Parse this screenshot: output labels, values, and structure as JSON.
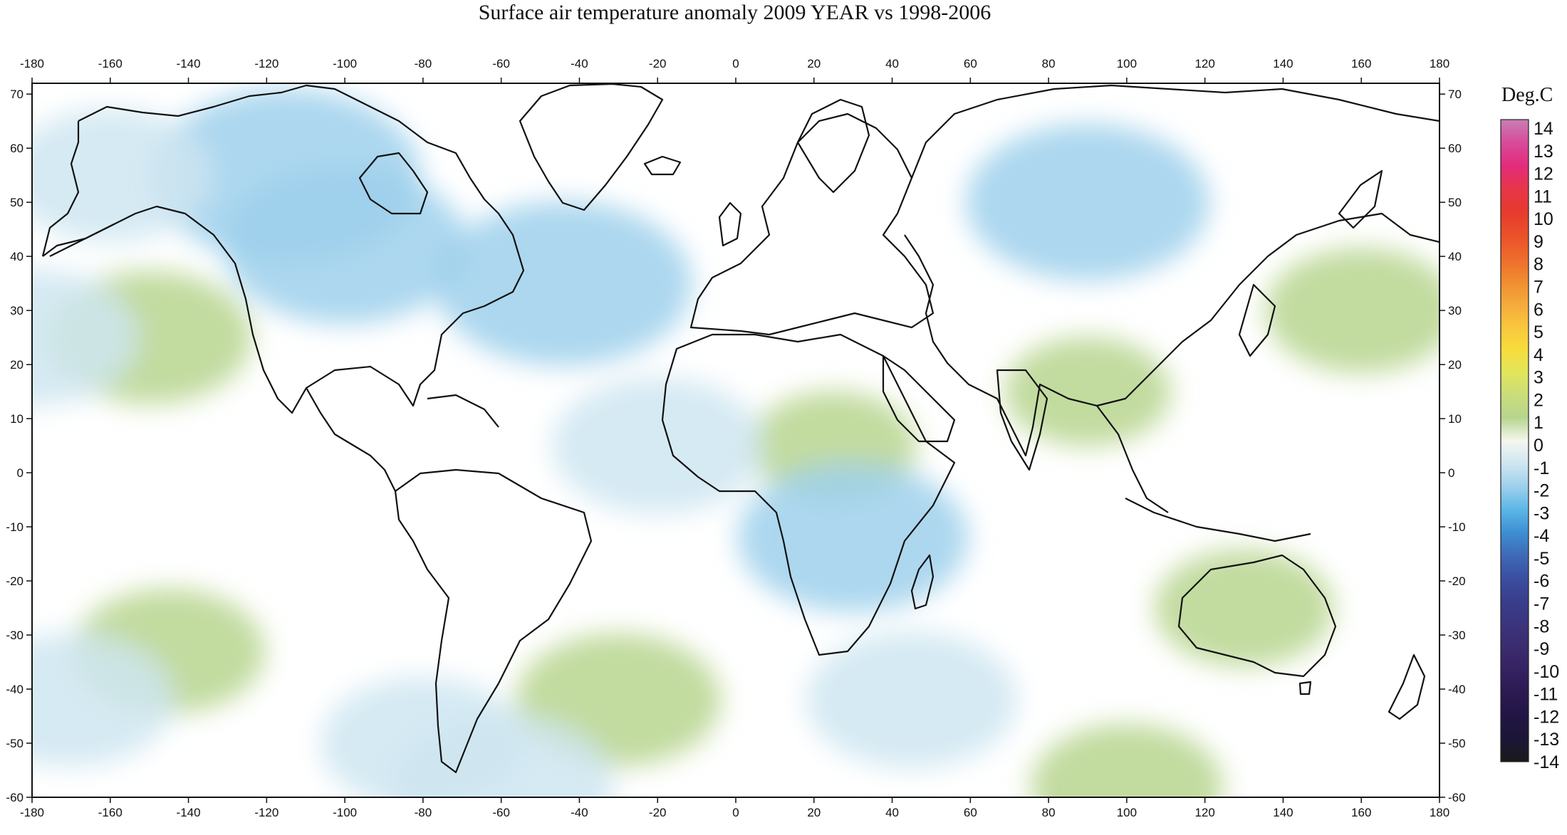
{
  "title": "Surface air temperature anomaly 2009 YEAR vs 1998-2006",
  "chart_data": {
    "type": "heatmap",
    "title": "Surface air temperature anomaly 2009 YEAR vs 1998-2006",
    "x_range": [
      -180,
      180
    ],
    "y_range": [
      -60,
      72
    ],
    "x_ticks": [
      -180,
      -160,
      -140,
      -120,
      -100,
      -80,
      -60,
      -40,
      -20,
      0,
      20,
      40,
      60,
      80,
      100,
      120,
      140,
      160,
      180
    ],
    "y_ticks": [
      70,
      60,
      50,
      40,
      30,
      20,
      10,
      0,
      -10,
      -20,
      -30,
      -40,
      -50,
      -60
    ],
    "colorbar": {
      "unit": "Deg.C",
      "levels": [
        14,
        13,
        12,
        11,
        10,
        9,
        8,
        7,
        6,
        5,
        4,
        3,
        2,
        1,
        0,
        -1,
        -2,
        -3,
        -4,
        -5,
        -6,
        -7,
        -8,
        -9,
        -10,
        -11,
        -12,
        -13,
        -14
      ],
      "colors": [
        "#c77fb4",
        "#d74b9a",
        "#e32c7c",
        "#e8354a",
        "#e63a2e",
        "#ea4f2a",
        "#ee6a2c",
        "#f08a31",
        "#f4a93a",
        "#f9c53e",
        "#f7dc3c",
        "#e3e55a",
        "#c9dd7a",
        "#b7d58e",
        "#f4f7ee",
        "#cfe6f1",
        "#9dd0ec",
        "#5cb7e6",
        "#3d8fd2",
        "#3e6ab7",
        "#3b4e9f",
        "#393e8c",
        "#3b347d",
        "#3b2c6f",
        "#342261",
        "#2b1a51",
        "#221544",
        "#1c1637",
        "#1a1a1a"
      ]
    },
    "anomaly_regions": [
      {
        "lon": -115,
        "lat": 55,
        "value": -2.2
      },
      {
        "lon": -100,
        "lat": 42,
        "value": -1.8
      },
      {
        "lon": -160,
        "lat": 55,
        "value": -1.2
      },
      {
        "lon": -44,
        "lat": 35,
        "value": -2.0
      },
      {
        "lon": 90,
        "lat": 50,
        "value": -1.8
      },
      {
        "lon": -150,
        "lat": 25,
        "value": 1.2
      },
      {
        "lon": -145,
        "lat": -33,
        "value": 1.0
      },
      {
        "lon": -30,
        "lat": -42,
        "value": 1.2
      },
      {
        "lon": 130,
        "lat": -25,
        "value": 0.8
      },
      {
        "lon": 25,
        "lat": 5,
        "value": 0.6
      },
      {
        "lon": 90,
        "lat": 15,
        "value": 0.6
      },
      {
        "lon": 160,
        "lat": 30,
        "value": 1.0
      },
      {
        "lon": -80,
        "lat": -50,
        "value": -1.2
      },
      {
        "lon": 45,
        "lat": -42,
        "value": -1.3
      },
      {
        "lon": -170,
        "lat": -42,
        "value": -1.2
      },
      {
        "lon": 30,
        "lat": -12,
        "value": -1.6
      },
      {
        "lon": -180,
        "lat": 25,
        "value": -1.3
      },
      {
        "lon": -60,
        "lat": -58,
        "value": -1.5
      },
      {
        "lon": 100,
        "lat": -58,
        "value": 1.0
      },
      {
        "lon": -20,
        "lat": 5,
        "value": -1.3
      }
    ]
  }
}
